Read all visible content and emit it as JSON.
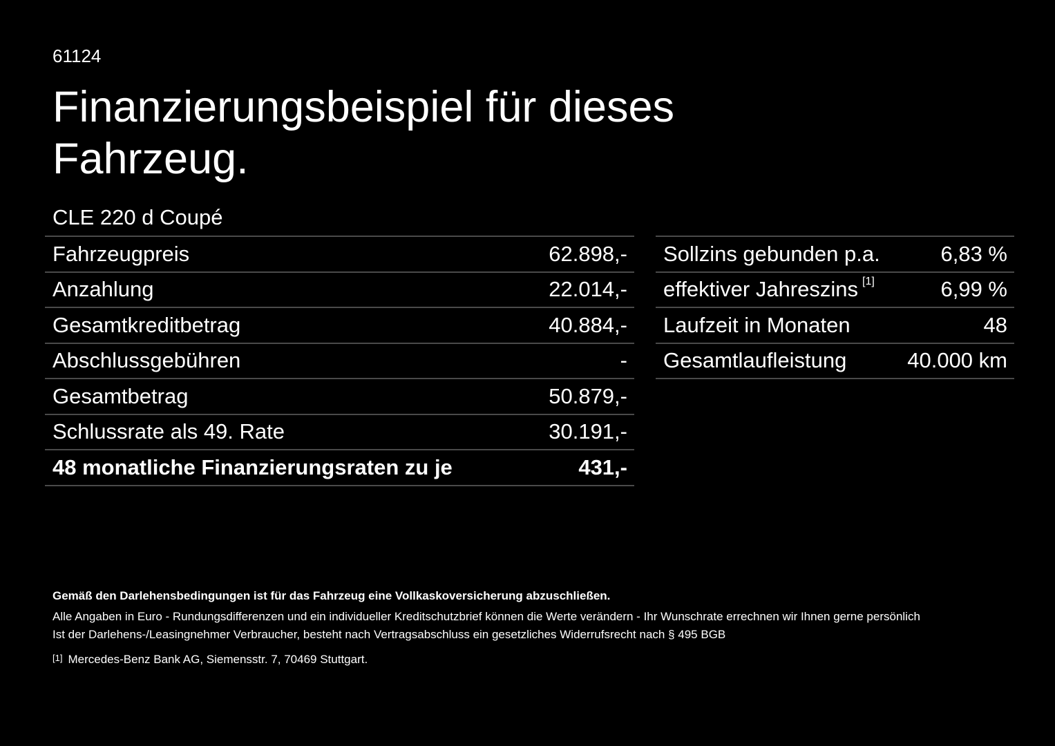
{
  "code": "61124",
  "title": "Finanzierungsbeispiel für dieses Fahrzeug.",
  "model": "CLE 220 d Coupé",
  "left_table": [
    {
      "label": "Fahrzeugpreis",
      "value": "62.898,-"
    },
    {
      "label": "Anzahlung",
      "value": "22.014,-"
    },
    {
      "label": "Gesamtkreditbetrag",
      "value": "40.884,-"
    },
    {
      "label": "Abschlussgebühren",
      "value": "-"
    },
    {
      "label": "Gesamtbetrag",
      "value": "50.879,-"
    },
    {
      "label": "Schlussrate als 49. Rate",
      "value": "30.191,-"
    },
    {
      "label": "48 monatliche Finanzierungsraten zu je",
      "value": "431,-"
    }
  ],
  "right_table": [
    {
      "label": "Sollzins gebunden p.a.",
      "value": "6,83 %"
    },
    {
      "label": "effektiver Jahreszins",
      "sup": "[1]",
      "value": "6,99 %"
    },
    {
      "label": "Laufzeit in Monaten",
      "value": "48"
    },
    {
      "label": "Gesamtlaufleistung",
      "value": "40.000 km"
    }
  ],
  "footer": {
    "bold_note": "Gemäß den Darlehensbedingungen ist für das Fahrzeug eine Vollkaskoversicherung abzuschließen.",
    "line1": "Alle Angaben in Euro - Rundungsdifferenzen und ein individueller Kreditschutzbrief können die Werte verändern - Ihr Wunschrate errechnen wir Ihnen gerne persönlich",
    "line2": "Ist der Darlehens-/Leasingnehmer Verbraucher, besteht nach Vertragsabschluss ein gesetzliches Widerrufsrecht nach § 495 BGB",
    "footnote_mark": "[1]",
    "footnote": "Mercedes-Benz Bank AG, Siemensstr. 7, 70469 Stuttgart."
  }
}
